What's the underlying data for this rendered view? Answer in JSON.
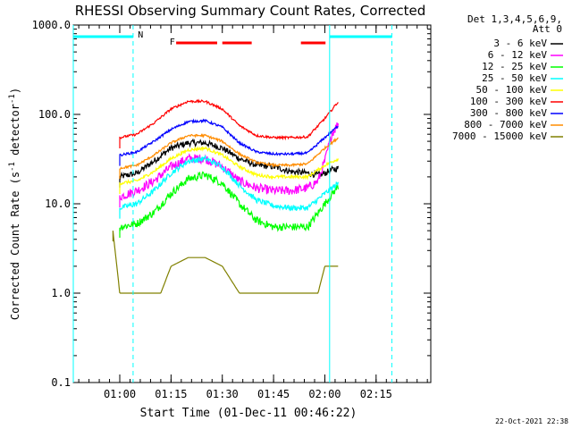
{
  "chart_data": {
    "type": "line",
    "title": "RHESSI Observing Summary Count Rates, Corrected",
    "xlabel": "Start Time (01-Dec-11 00:46:22)",
    "ylabel_main": "Corrected Count Rate (s",
    "ylabel_sup1": "-1",
    "ylabel_mid": " detector",
    "ylabel_sup2": "-1",
    "ylabel_end": ")",
    "yscale": "log",
    "ylim": [
      0.1,
      1000
    ],
    "xlim_minutes": [
      46.4,
      151.0
    ],
    "xticks": [
      {
        "minutes": 60,
        "label": "01:00"
      },
      {
        "minutes": 75,
        "label": "01:15"
      },
      {
        "minutes": 90,
        "label": "01:30"
      },
      {
        "minutes": 105,
        "label": "01:45"
      },
      {
        "minutes": 120,
        "label": "02:00"
      },
      {
        "minutes": 135,
        "label": "02:15"
      }
    ],
    "yticks": [
      {
        "value": 0.1,
        "label": "0.1"
      },
      {
        "value": 1,
        "label": "1.0"
      },
      {
        "value": 10,
        "label": "10.0"
      },
      {
        "value": 100,
        "label": "100.0"
      },
      {
        "value": 1000,
        "label": "1000.0"
      }
    ],
    "legend_header": [
      "Det 1,3,4,5,6,9,",
      "Att 0"
    ],
    "legend_position": "right",
    "series": [
      {
        "name": "3 - 6 keV",
        "color": "#000000",
        "noise": 0.08,
        "x": [
          60,
          65,
          70,
          75,
          80,
          85,
          90,
          95,
          100,
          105,
          110,
          115,
          118,
          120,
          122,
          124
        ],
        "values": [
          20,
          22,
          30,
          42,
          48,
          48,
          42,
          32,
          27,
          26,
          23,
          22,
          21,
          22,
          24,
          25
        ]
      },
      {
        "name": "6 - 12 keV",
        "color": "#ff00ff",
        "noise": 0.12,
        "x": [
          60,
          65,
          70,
          75,
          80,
          85,
          90,
          95,
          100,
          105,
          110,
          115,
          118,
          120,
          122,
          124
        ],
        "values": [
          12,
          14,
          18,
          26,
          32,
          32,
          26,
          18,
          15,
          14,
          14,
          15,
          18,
          30,
          60,
          80
        ]
      },
      {
        "name": "12 - 25 keV",
        "color": "#00ff00",
        "noise": 0.1,
        "x": [
          60,
          65,
          70,
          75,
          80,
          85,
          90,
          95,
          100,
          105,
          110,
          115,
          120,
          124
        ],
        "values": [
          5.5,
          6,
          8,
          13,
          19,
          21,
          17,
          10,
          6.5,
          5.5,
          5.5,
          5.5,
          10,
          16
        ]
      },
      {
        "name": "25 - 50 keV",
        "color": "#00ffff",
        "noise": 0.07,
        "x": [
          60,
          65,
          70,
          75,
          80,
          85,
          90,
          95,
          100,
          105,
          110,
          115,
          120,
          124
        ],
        "values": [
          9,
          10,
          14,
          22,
          30,
          32,
          26,
          16,
          11,
          9.5,
          9,
          9,
          13,
          17
        ]
      },
      {
        "name": "50 - 100 keV",
        "color": "#ffff00",
        "noise": 0.04,
        "x": [
          60,
          65,
          70,
          75,
          80,
          85,
          90,
          95,
          100,
          105,
          110,
          115,
          120,
          124
        ],
        "values": [
          17,
          18,
          23,
          32,
          40,
          42,
          35,
          26,
          21,
          20,
          20,
          20,
          27,
          32
        ]
      },
      {
        "name": "100 - 300 keV",
        "color": "#ff0000",
        "noise": 0.03,
        "x": [
          60,
          65,
          70,
          75,
          80,
          85,
          90,
          95,
          100,
          105,
          110,
          115,
          120,
          124
        ],
        "values": [
          55,
          60,
          80,
          115,
          140,
          140,
          115,
          75,
          58,
          55,
          55,
          56,
          90,
          140
        ]
      },
      {
        "name": "300 - 800 keV",
        "color": "#0000ff",
        "noise": 0.03,
        "x": [
          60,
          65,
          70,
          75,
          80,
          85,
          90,
          95,
          100,
          105,
          110,
          115,
          120,
          124
        ],
        "values": [
          35,
          38,
          50,
          68,
          83,
          85,
          72,
          48,
          38,
          36,
          36,
          37,
          55,
          75
        ]
      },
      {
        "name": "800 - 7000 keV",
        "color": "#ff8c00",
        "noise": 0.03,
        "x": [
          60,
          65,
          70,
          75,
          80,
          85,
          90,
          95,
          100,
          105,
          110,
          115,
          120,
          124
        ],
        "values": [
          25,
          27,
          35,
          48,
          58,
          58,
          50,
          36,
          29,
          27,
          27,
          28,
          42,
          55
        ]
      },
      {
        "name": "7000 - 15000 keV",
        "color": "#808000",
        "noise": 0.0,
        "x": [
          58,
          60,
          65,
          70,
          72,
          75,
          80,
          85,
          90,
          95,
          96,
          100,
          105,
          110,
          115,
          118,
          120,
          124
        ],
        "values": [
          5,
          1,
          1,
          1,
          1,
          2,
          2.5,
          2.5,
          2,
          1,
          1,
          1,
          1,
          1,
          1,
          1,
          2,
          2
        ]
      }
    ],
    "annotations": [
      {
        "text": "N",
        "color": "#00ffff",
        "minutes": 64.5
      },
      {
        "text": "F",
        "color": "#ff0000",
        "minutes": 73.8
      }
    ],
    "saa_bar_segments": [
      [
        46.4,
        63.9
      ],
      [
        121.4,
        139.6
      ]
    ],
    "saa_vertical_lines": [
      46.4,
      63.9,
      121.4,
      139.6
    ],
    "flare_bar_segments": [
      [
        76.5,
        88.5
      ],
      [
        90.0,
        98.6
      ],
      [
        113.0,
        120.2
      ]
    ],
    "timestamp": "22-Oct-2021 22:38"
  }
}
